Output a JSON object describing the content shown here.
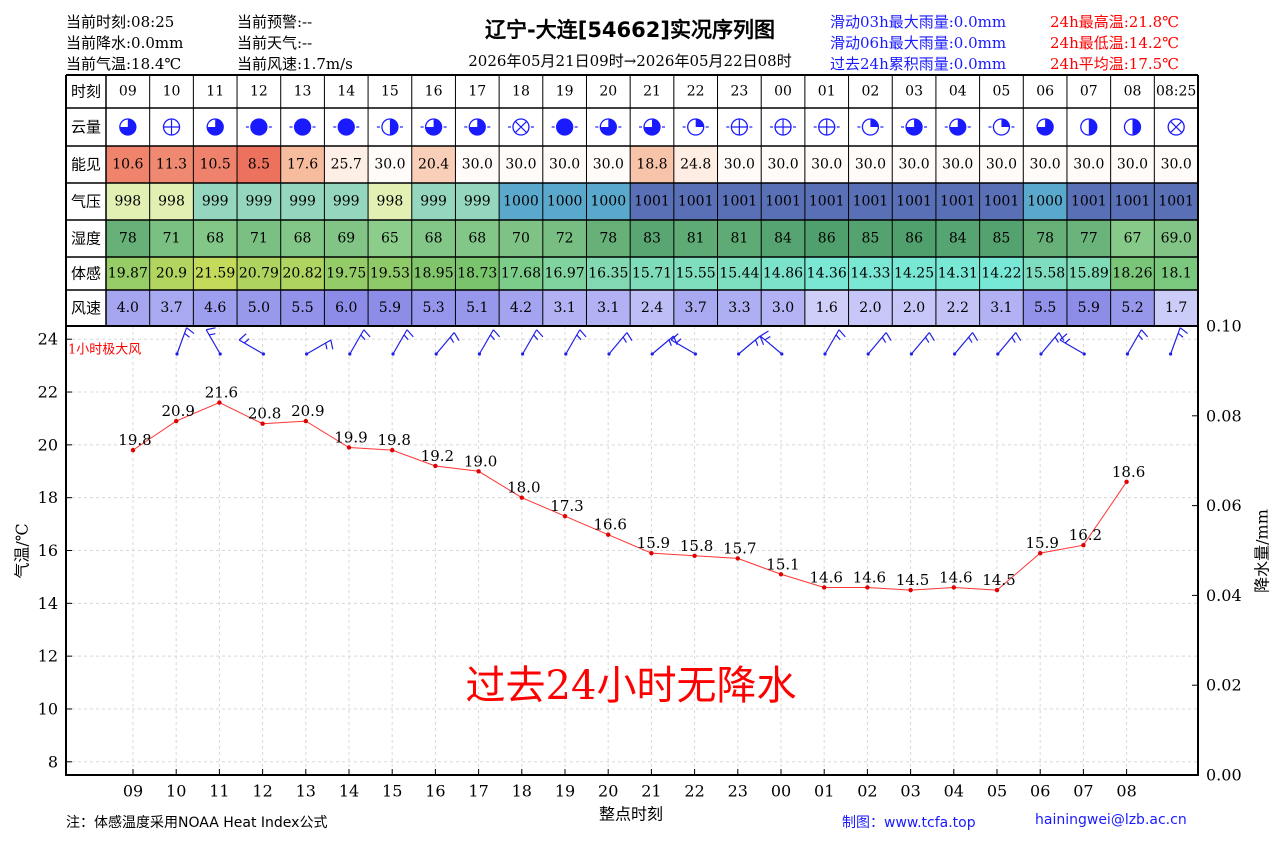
{
  "header": {
    "title": "辽宁-大连[54662]实况序列图",
    "subtitle": "2026年05月21日09时→2026年05月22日08时",
    "left": [
      "当前时刻:08:25",
      "当前降水:0.0mm",
      "当前气温:18.4℃"
    ],
    "mid": [
      "当前预警:--",
      "当前天气:--",
      "当前风速:1.7m/s"
    ],
    "rain": [
      "滑动03h最大雨量:0.0mm",
      "滑动06h最大雨量:0.0mm",
      "过去24h累积雨量:0.0mm"
    ],
    "temp": [
      "24h最高温:21.8℃",
      "24h最低温:14.2℃",
      "24h平均温:17.5℃"
    ]
  },
  "colors": {
    "red": "#ff0000",
    "blue": "#1a1aff",
    "wind_barb": "#1f1fe6",
    "line": "#ff3333"
  },
  "table": {
    "row_labels": [
      "时刻",
      "云量",
      "能见",
      "气压",
      "湿度",
      "体感",
      "风速"
    ],
    "hours": [
      "09",
      "10",
      "11",
      "12",
      "13",
      "14",
      "15",
      "16",
      "17",
      "18",
      "19",
      "20",
      "21",
      "22",
      "23",
      "00",
      "01",
      "02",
      "03",
      "04",
      "05",
      "06",
      "07",
      "08",
      "08:25"
    ],
    "cloud": [
      0.75,
      0,
      0.75,
      1,
      1,
      1,
      0.5,
      0.75,
      0.75,
      0,
      1,
      0.75,
      0.75,
      0.25,
      0,
      0,
      0,
      0.25,
      0.75,
      0.75,
      0.25,
      0.75,
      0.5,
      0.5,
      0
    ],
    "vis": [
      "10.6",
      "11.3",
      "10.5",
      "8.5",
      "17.6",
      "25.7",
      "30.0",
      "20.4",
      "30.0",
      "30.0",
      "30.0",
      "30.0",
      "18.8",
      "24.8",
      "30.0",
      "30.0",
      "30.0",
      "30.0",
      "30.0",
      "30.0",
      "30.0",
      "30.0",
      "30.0",
      "30.0",
      "30.0"
    ],
    "pres": [
      "998",
      "998",
      "999",
      "999",
      "999",
      "999",
      "998",
      "999",
      "999",
      "1000",
      "1000",
      "1000",
      "1001",
      "1001",
      "1001",
      "1001",
      "1001",
      "1001",
      "1001",
      "1001",
      "1001",
      "1000",
      "1001",
      "1001",
      "1001"
    ],
    "hum": [
      "78",
      "71",
      "68",
      "71",
      "68",
      "69",
      "65",
      "68",
      "68",
      "70",
      "72",
      "78",
      "83",
      "81",
      "81",
      "84",
      "86",
      "85",
      "86",
      "84",
      "85",
      "78",
      "77",
      "67",
      "69.0"
    ],
    "feel": [
      "19.87",
      "20.9",
      "21.59",
      "20.79",
      "20.82",
      "19.75",
      "19.53",
      "18.95",
      "18.73",
      "17.68",
      "16.97",
      "16.35",
      "15.71",
      "15.55",
      "15.44",
      "14.86",
      "14.36",
      "14.33",
      "14.25",
      "14.31",
      "14.22",
      "15.58",
      "15.89",
      "18.26",
      "18.1"
    ],
    "wind": [
      "4.0",
      "3.7",
      "4.6",
      "5.0",
      "5.5",
      "6.0",
      "5.9",
      "5.3",
      "5.1",
      "4.2",
      "3.1",
      "3.1",
      "2.4",
      "3.7",
      "3.3",
      "3.0",
      "1.6",
      "2.0",
      "2.0",
      "2.2",
      "3.1",
      "5.5",
      "5.9",
      "5.2",
      "1.7"
    ]
  },
  "chart_data": {
    "type": "line",
    "x": [
      "09",
      "10",
      "11",
      "12",
      "13",
      "14",
      "15",
      "16",
      "17",
      "18",
      "19",
      "20",
      "21",
      "22",
      "23",
      "00",
      "01",
      "02",
      "03",
      "04",
      "05",
      "06",
      "07",
      "08"
    ],
    "series": [
      {
        "values": [
          19.8,
          20.9,
          21.6,
          20.8,
          20.9,
          19.9,
          19.8,
          19.2,
          19.0,
          18.0,
          17.3,
          16.6,
          15.9,
          15.8,
          15.7,
          15.1,
          14.6,
          14.6,
          14.5,
          14.6,
          14.5,
          15.9,
          16.2,
          18.6
        ]
      }
    ],
    "wind_gust_dir_deg": [
      340,
      30,
      60,
      300,
      330,
      330,
      320,
      330,
      330,
      330,
      320,
      310,
      60,
      310,
      50,
      330,
      320,
      320,
      320,
      320,
      320,
      60,
      330,
      340
    ],
    "xlabel": "整点时刻",
    "ylabel": "气温/℃",
    "y2label": "降水量/mm",
    "ylim": [
      7.5,
      24.5
    ],
    "y2lim": [
      0,
      0.1
    ],
    "yticks": [
      8,
      10,
      12,
      14,
      16,
      18,
      20,
      22,
      24
    ],
    "y2ticks": [
      "0.00",
      "0.02",
      "0.04",
      "0.06",
      "0.08",
      "0.10"
    ],
    "wind_label": "1小时极大风",
    "no_rain_text": "过去24小时无降水",
    "grid": true
  },
  "footer": {
    "note": "注：体感温度采用NOAA Heat Index公式",
    "made_by": "制图：www.tcfa.top",
    "email": "hainingwei@lzb.ac.cn"
  }
}
